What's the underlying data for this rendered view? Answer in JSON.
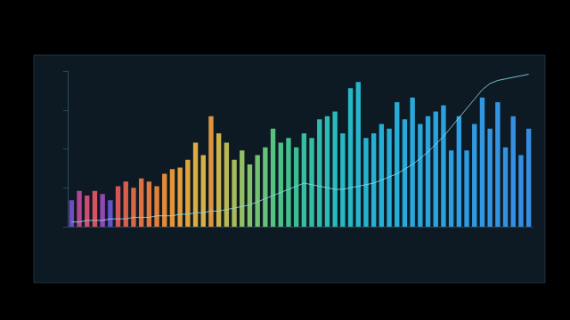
{
  "chart_data": {
    "type": "bar",
    "categories": [
      null,
      null,
      null,
      null,
      null,
      null,
      null,
      null,
      null,
      null,
      null,
      null,
      null,
      null,
      null,
      null,
      null,
      null,
      null,
      null,
      null,
      null,
      null,
      null,
      null,
      null,
      null,
      null,
      null,
      null,
      null,
      null,
      null,
      null,
      null,
      null,
      null,
      null,
      null,
      null,
      null,
      null,
      null,
      null,
      null,
      null,
      null,
      null,
      null,
      null,
      null,
      null,
      null,
      null,
      null,
      null,
      null,
      null,
      null,
      null
    ],
    "series": [
      {
        "type": "bar",
        "values": [
          17,
          23,
          20,
          23,
          21,
          17,
          26,
          29,
          25,
          31,
          29,
          26,
          34,
          37,
          38,
          43,
          54,
          46,
          71,
          60,
          54,
          43,
          49,
          40,
          46,
          51,
          63,
          54,
          57,
          51,
          60,
          57,
          69,
          71,
          74,
          60,
          89,
          93,
          57,
          60,
          66,
          63,
          80,
          69,
          83,
          66,
          71,
          74,
          78,
          49,
          71,
          49,
          66,
          83,
          63,
          80,
          51,
          71,
          46,
          63
        ],
        "colors": [
          "#7a4fd0",
          "#c04a9a",
          "#e0507a",
          "#e85868",
          "#a04cc0",
          "#6a5ad8",
          "#e85a5a",
          "#ea6450",
          "#ec6e48",
          "#ee7844",
          "#f08040",
          "#f28a3e",
          "#f4943c",
          "#f59e3c",
          "#f6a83e",
          "#f2b040",
          "#eeb844",
          "#e8be4a",
          "#f0a040",
          "#dcc050",
          "#c8c458",
          "#b4c860",
          "#a0cc68",
          "#8ccf70",
          "#7cd078",
          "#6cd080",
          "#5ecf88",
          "#52ce90",
          "#48cd98",
          "#40cca0",
          "#3acba8",
          "#36cab0",
          "#32c9b8",
          "#30c8c0",
          "#2ec8c8",
          "#2cc6ce",
          "#2ac4d4",
          "#28c2da",
          "#28c0de",
          "#28bee2",
          "#28bce4",
          "#28bae6",
          "#2ab8e8",
          "#2ab6ea",
          "#2cb4ea",
          "#2cb2ec",
          "#2eb0ec",
          "#2eaeee",
          "#30acee",
          "#30aaf0",
          "#32a8f0",
          "#32a6f0",
          "#34a4f0",
          "#34a2f2",
          "#36a0f2",
          "#369ef2",
          "#389cf2",
          "#389af4",
          "#3a98f4",
          "#3a96f4"
        ]
      },
      {
        "type": "line",
        "color": "#8fd8e8",
        "values": [
          3,
          3,
          4,
          4,
          4,
          5,
          5,
          5,
          6,
          6,
          6,
          7,
          7,
          7,
          8,
          8,
          9,
          9,
          10,
          10,
          11,
          12,
          13,
          14,
          16,
          18,
          20,
          22,
          24,
          26,
          28,
          27,
          26,
          25,
          24,
          24,
          25,
          26,
          27,
          28,
          30,
          32,
          34,
          37,
          40,
          44,
          48,
          53,
          58,
          64,
          70,
          76,
          82,
          88,
          92,
          94,
          95,
          96,
          97,
          98
        ]
      }
    ],
    "ylim": [
      0,
      100
    ],
    "yticks": [
      0,
      25,
      50,
      75,
      100
    ],
    "grid": false,
    "tick_labels": false
  }
}
